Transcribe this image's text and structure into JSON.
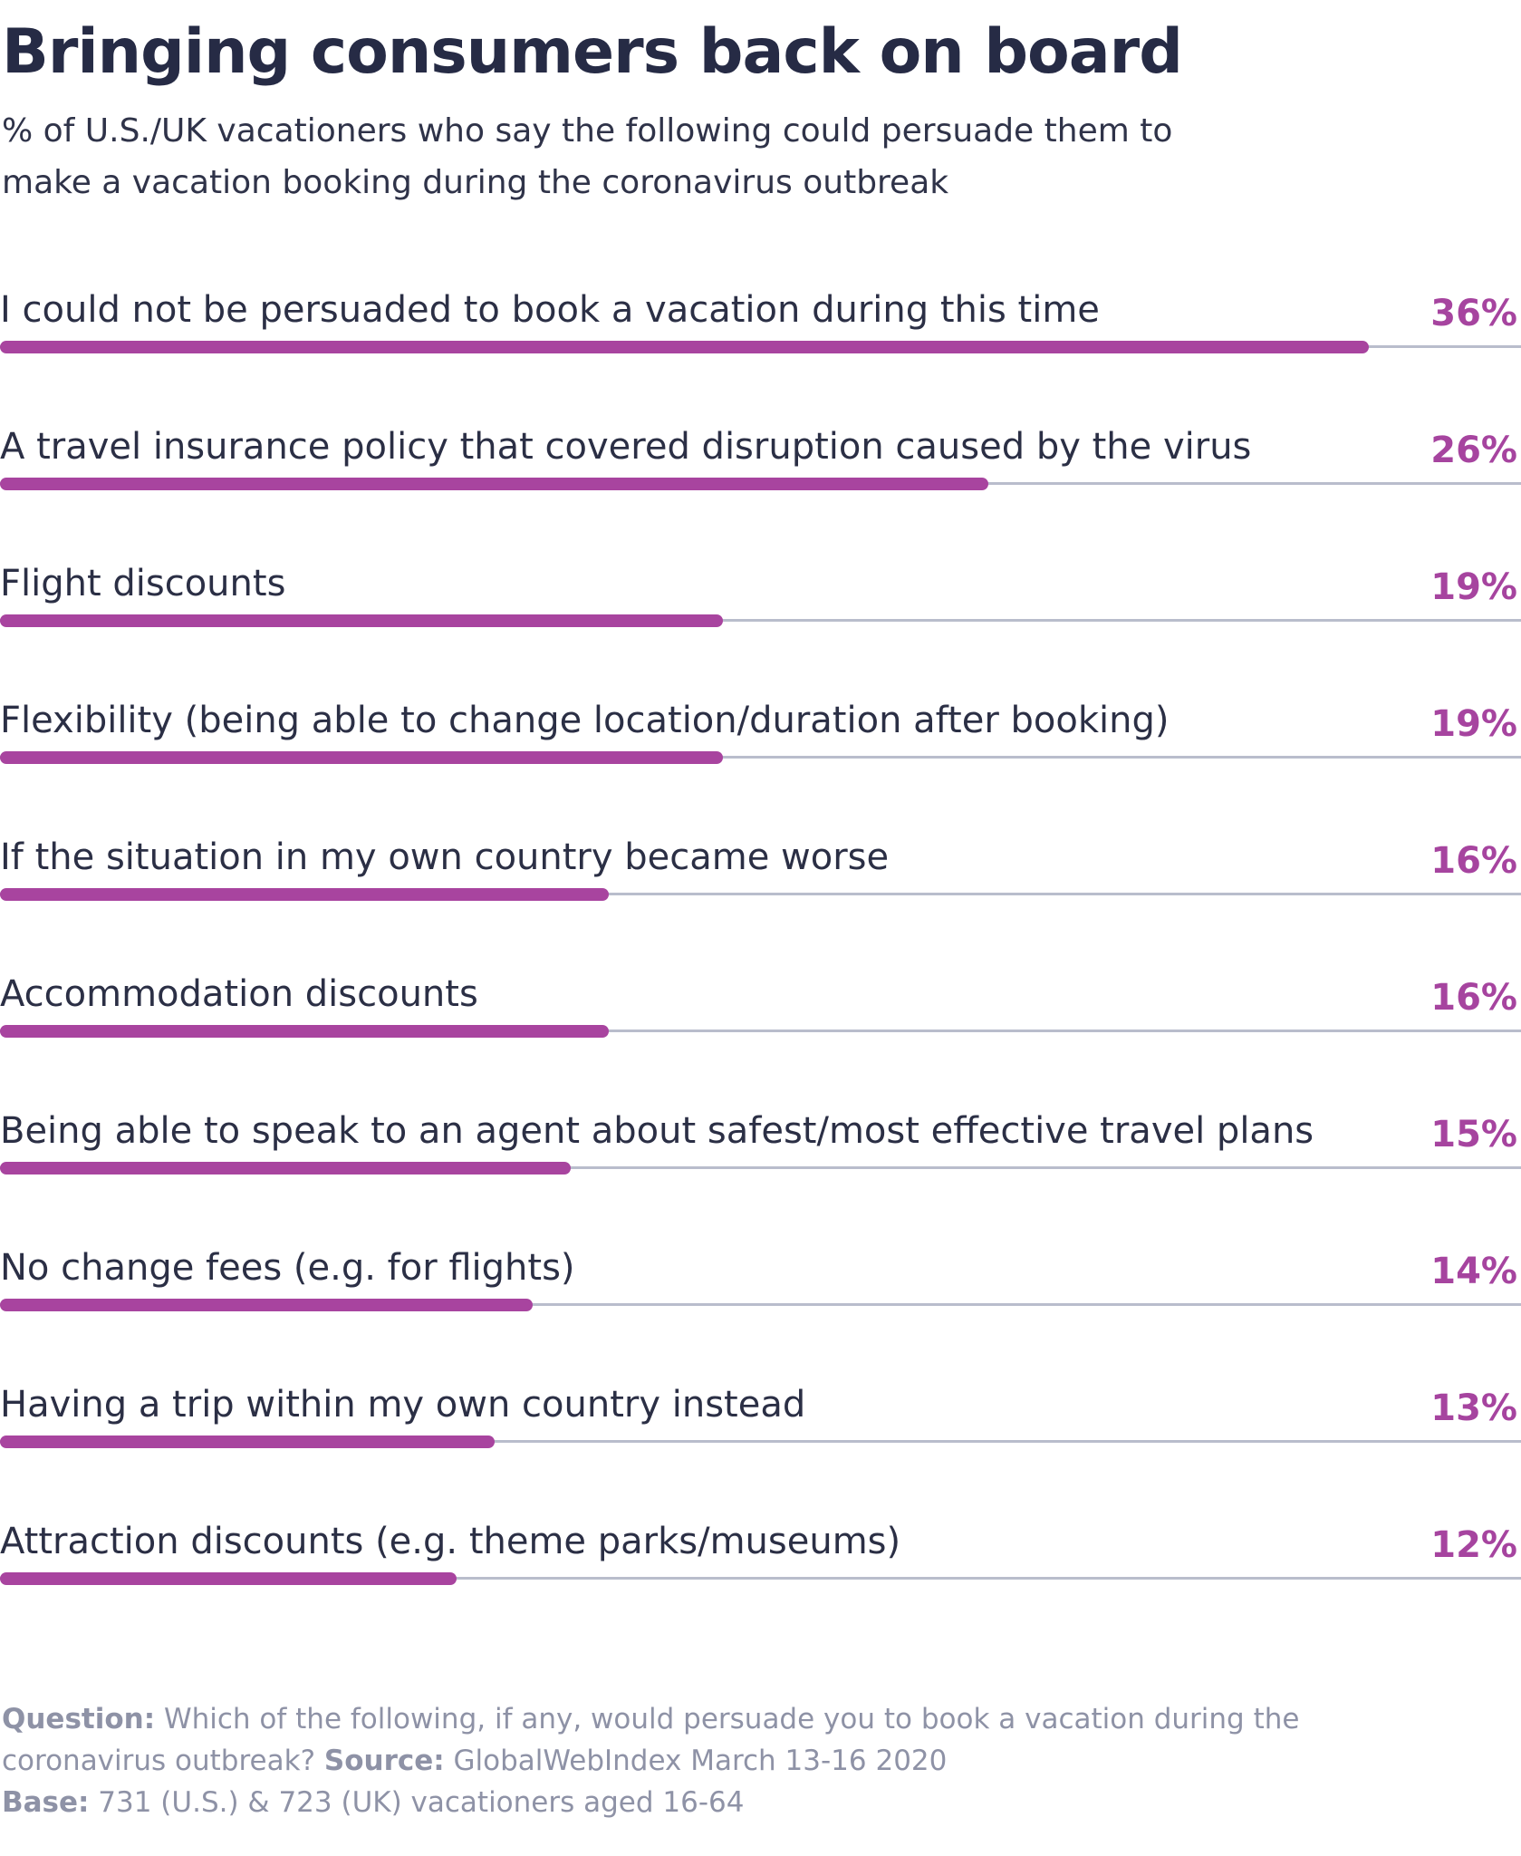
{
  "header": {
    "title": "Bringing consumers back on board",
    "subtitle_line1": "% of U.S./UK vacationers who say the following could persuade them to",
    "subtitle_line2": "make a vacation booking during the coronavirus outbreak"
  },
  "chart_data": {
    "type": "bar",
    "orientation": "horizontal",
    "unit": "%",
    "xlim": [
      0,
      40
    ],
    "bar_color": "#a8449f",
    "track_color": "#b9bdcc",
    "categories": [
      "I could not be persuaded to book a vacation during this time",
      "A travel insurance policy that covered disruption caused by the virus",
      "Flight discounts",
      "Flexibility (being able to change location/duration after booking)",
      "If the situation in my own country became worse",
      "Accommodation discounts",
      "Being able to speak to an agent about safest/most effective travel plans",
      "No change fees (e.g. for flights)",
      "Having a trip within my own country instead",
      "Attraction discounts (e.g. theme parks/museums)"
    ],
    "values": [
      36,
      26,
      19,
      19,
      16,
      16,
      15,
      14,
      13,
      12
    ],
    "value_labels": [
      "36%",
      "26%",
      "19%",
      "19%",
      "16%",
      "16%",
      "15%",
      "14%",
      "13%",
      "12%"
    ]
  },
  "footer": {
    "question_label": "Question:",
    "question_text": " Which of the following, if any, would persuade you to book a vacation during the coronavirus outbreak? ",
    "source_label": "Source:",
    "source_text": " GlobalWebIndex March 13-16 2020",
    "base_label": "Base:",
    "base_text": " 731 (U.S.) & 723 (UK) vacationers aged 16-64"
  }
}
